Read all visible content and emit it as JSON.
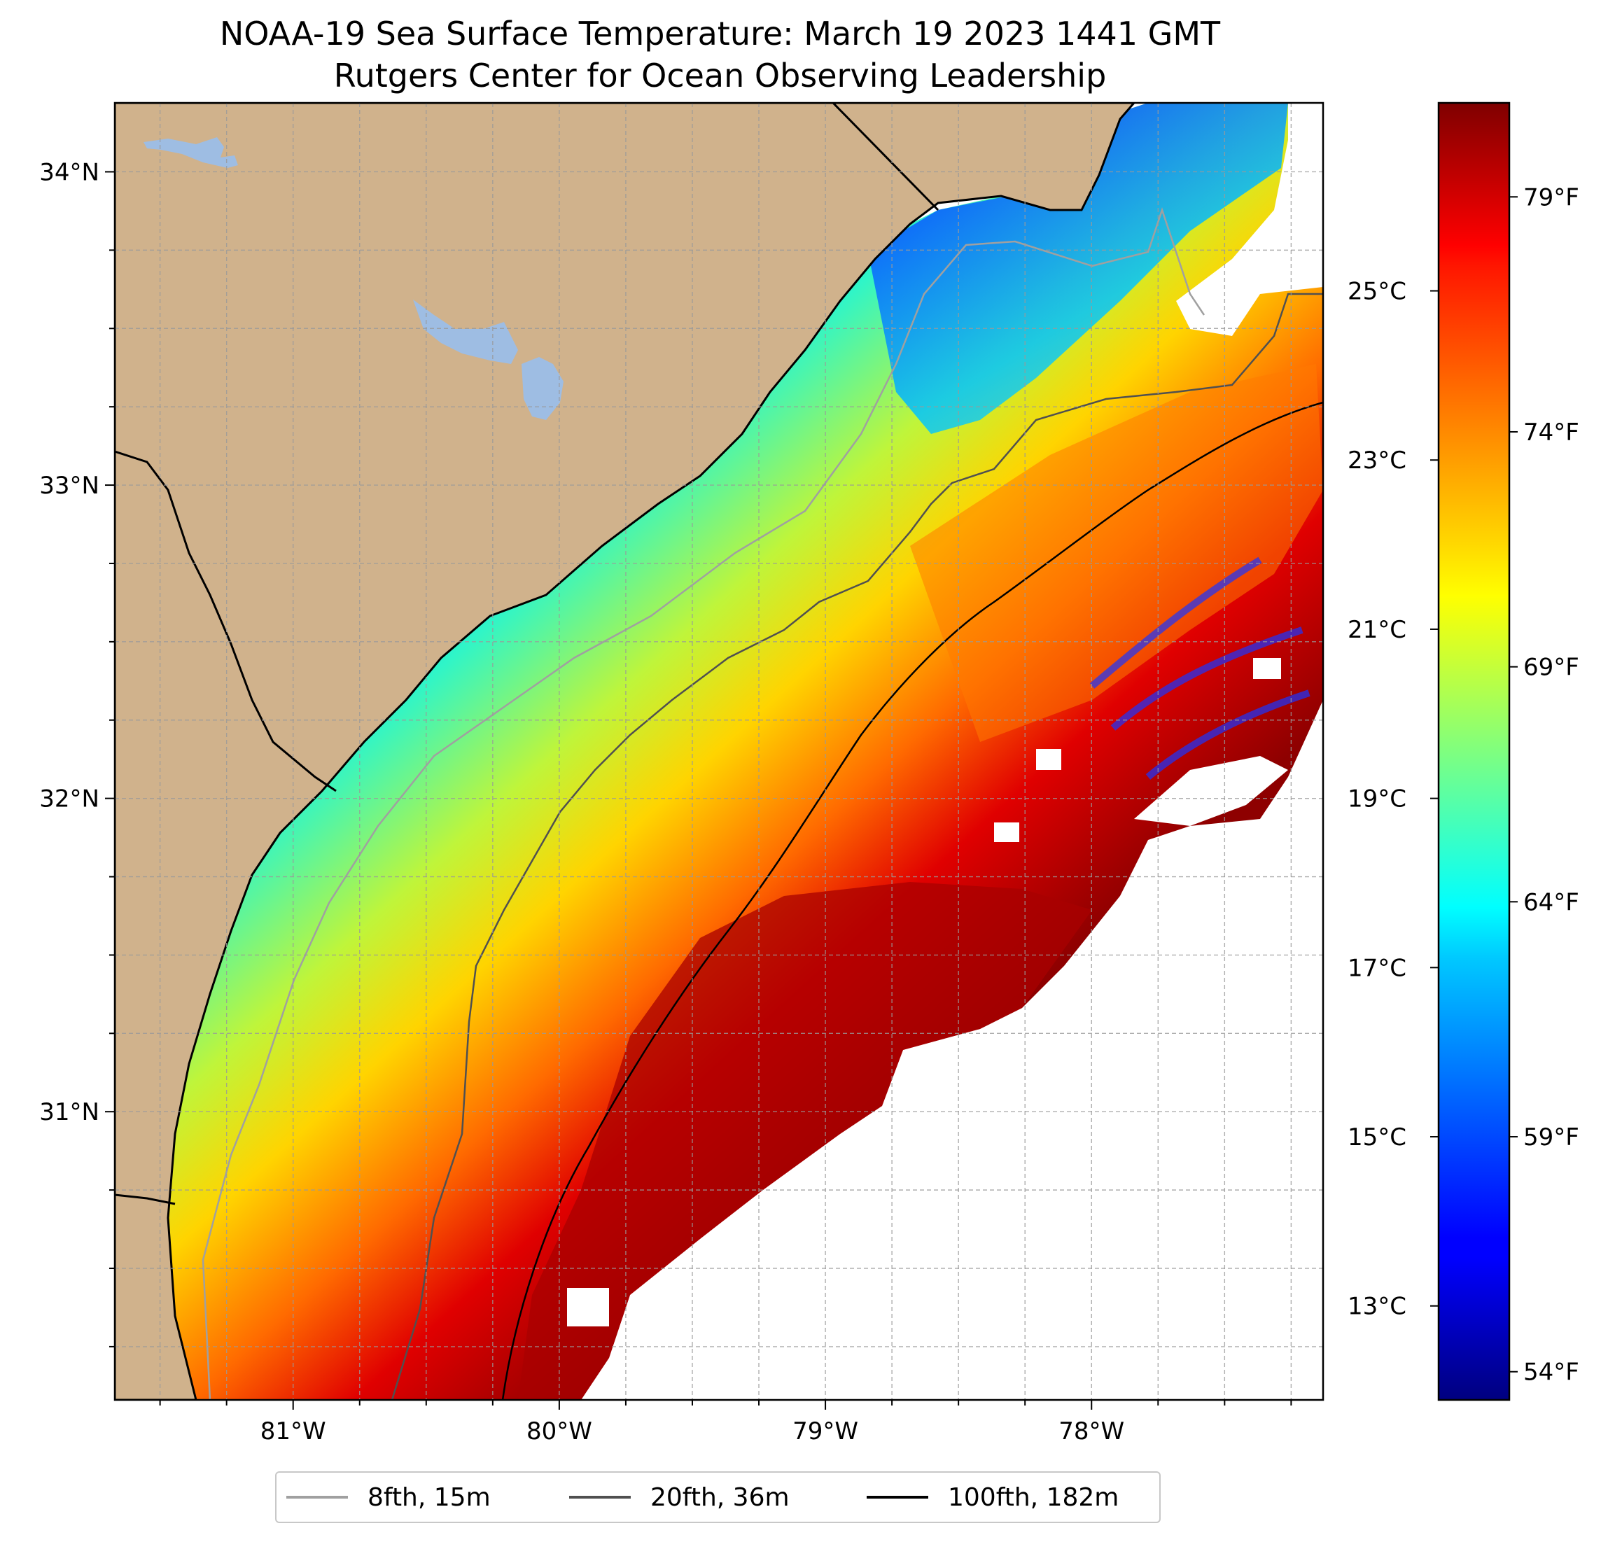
{
  "title": {
    "line1": "NOAA-19 Sea Surface Temperature: March 19 2023 1441 GMT",
    "line2": "Rutgers Center for Ocean Observing Leadership"
  },
  "map": {
    "lon_range": [
      -81.67,
      -77.13
    ],
    "lat_range": [
      30.08,
      34.22
    ],
    "lon_ticks": [
      {
        "value": -81,
        "label": "81°W"
      },
      {
        "value": -80,
        "label": "80°W"
      },
      {
        "value": -79,
        "label": "79°W"
      },
      {
        "value": -78,
        "label": "78°W"
      }
    ],
    "lat_ticks": [
      {
        "value": 34,
        "label": "34°N"
      },
      {
        "value": 33,
        "label": "33°N"
      },
      {
        "value": 32,
        "label": "32°N"
      },
      {
        "value": 31,
        "label": "31°N"
      }
    ],
    "grid": "dashed minor gridlines every 0.25°",
    "land_color": "#d0b28c",
    "lake_color": "#9ebde3",
    "cloud_mask_color": "#ffffff"
  },
  "colorbar": {
    "colormap": "jet",
    "celsius_ticks": [
      {
        "value": 25,
        "label": "25°C"
      },
      {
        "value": 23,
        "label": "23°C"
      },
      {
        "value": 21,
        "label": "21°C"
      },
      {
        "value": 19,
        "label": "19°C"
      },
      {
        "value": 17,
        "label": "17°C"
      },
      {
        "value": 15,
        "label": "15°C"
      },
      {
        "value": 13,
        "label": "13°C"
      }
    ],
    "fahrenheit_ticks": [
      {
        "value": 79,
        "label": "79°F"
      },
      {
        "value": 74,
        "label": "74°F"
      },
      {
        "value": 69,
        "label": "69°F"
      },
      {
        "value": 64,
        "label": "64°F"
      },
      {
        "value": 59,
        "label": "59°F"
      },
      {
        "value": 54,
        "label": "54°F"
      }
    ],
    "range_f": [
      53.4,
      81.0
    ]
  },
  "legend": {
    "items": [
      {
        "label": "8fth, 15m",
        "color": "#a0a0a0"
      },
      {
        "label": "20fth, 36m",
        "color": "#505050"
      },
      {
        "label": "100fth, 182m",
        "color": "#000000"
      }
    ]
  }
}
